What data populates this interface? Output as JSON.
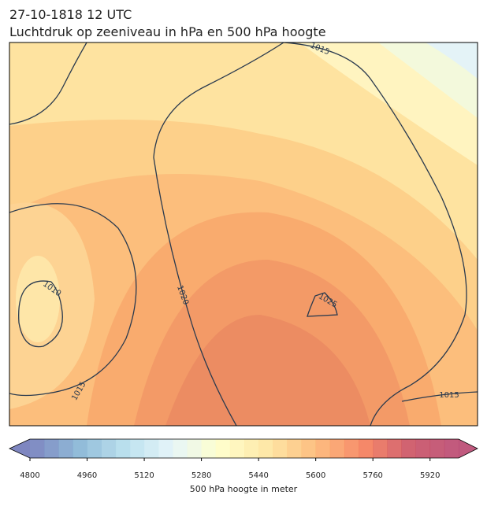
{
  "header": {
    "date": "27-10-1818 12 UTC",
    "title": "Luchtdruk op zeeniveau in hPa en 500 hPa hoogte"
  },
  "map": {
    "isobar_labels": [
      "1015",
      "1010",
      "1020",
      "1025",
      "1015",
      "1015"
    ]
  },
  "colorbar": {
    "label": "500 hPa hoogte in meter",
    "range": [
      4800,
      6000
    ],
    "ticks": [
      4800,
      4960,
      5120,
      5280,
      5440,
      5600,
      5760,
      5920
    ]
  }
}
